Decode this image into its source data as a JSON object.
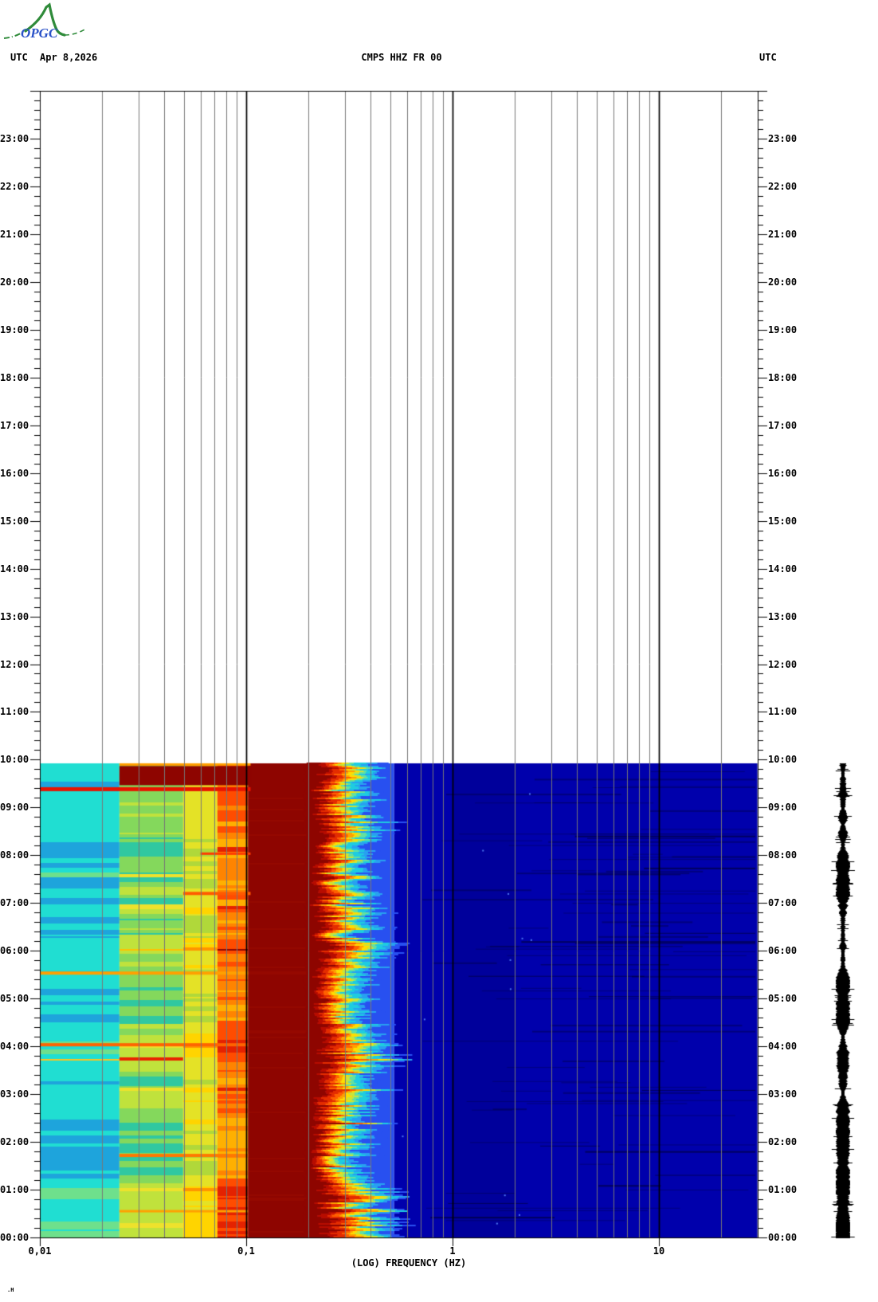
{
  "header": {
    "utc_left": "UTC",
    "date": "Apr 8,2026",
    "title": "CMPS HHZ FR 00",
    "utc_right": "UTC"
  },
  "logo": {
    "text": "OPGC",
    "mountain_color": "#2f8b3a",
    "text_color": "#2a52c8"
  },
  "x_axis": {
    "label": "(LOG) FREQUENCY (HZ)",
    "scale": "log",
    "min_hz": 0.01,
    "max_hz": 30,
    "tick_hz": [
      0.01,
      0.1,
      1,
      10
    ],
    "tick_labels": [
      "0,01",
      "0,1",
      "1",
      "10"
    ]
  },
  "time_axis": {
    "zone": "UTC",
    "hours": [
      "00:00",
      "01:00",
      "02:00",
      "03:00",
      "04:00",
      "05:00",
      "06:00",
      "07:00",
      "08:00",
      "09:00",
      "10:00",
      "11:00",
      "12:00",
      "13:00",
      "14:00",
      "15:00",
      "16:00",
      "17:00",
      "18:00",
      "19:00",
      "20:00",
      "21:00",
      "22:00",
      "23:00"
    ],
    "minor_ticks_per_hour": 5
  },
  "corner_mark": ".H",
  "chart_data": {
    "type": "heatmap",
    "subtype": "seismic-spectrogram",
    "title": "CMPS HHZ FR 00",
    "xlabel": "(LOG) FREQUENCY (HZ)",
    "x_scale": "log",
    "x_range_hz": [
      0.01,
      30
    ],
    "y_range_utc": [
      "00:00",
      "24:00"
    ],
    "grid": "vertical-log-decades",
    "data_extent": {
      "time_start": "00:00",
      "time_end": "09:55"
    },
    "colors": {
      "background": "#ffffff",
      "grid": "#777777",
      "decade_line": "#000000",
      "axis": "#000000"
    },
    "zones": [
      {
        "hz0": 0.01,
        "hz1": 0.0243,
        "type": "stripes",
        "jitter": 0.06,
        "stops": [
          [
            0.13,
            "#1ea4dc"
          ],
          [
            0.52,
            "#20ded2"
          ],
          [
            0.68,
            "#6ee08c"
          ],
          [
            0.82,
            "#cce24c"
          ],
          [
            0.92,
            "#ffc41e"
          ],
          [
            0.97,
            "#ff8200"
          ],
          [
            2,
            "#ee2600"
          ]
        ]
      },
      {
        "hz0": 0.0243,
        "hz1": 0.0495,
        "type": "stripes",
        "jitter": 0.09,
        "stops": [
          [
            0.1,
            "#30c8a0"
          ],
          [
            0.3,
            "#84d85c"
          ],
          [
            0.6,
            "#c0e23c"
          ],
          [
            0.8,
            "#eee22c"
          ],
          [
            0.9,
            "#ffc000"
          ],
          [
            0.96,
            "#ff7e00"
          ],
          [
            2,
            "#e82400"
          ]
        ]
      },
      {
        "hz0": 0.0495,
        "hz1": 0.0725,
        "type": "stripes",
        "jitter": 0.12,
        "stops": [
          [
            0.12,
            "#b0d83a"
          ],
          [
            0.4,
            "#e4e226"
          ],
          [
            0.65,
            "#ffd400"
          ],
          [
            0.84,
            "#ff9400"
          ],
          [
            0.94,
            "#ff5000"
          ],
          [
            2,
            "#d01800"
          ]
        ]
      },
      {
        "hz0": 0.0725,
        "hz1": 0.102,
        "type": "stripes",
        "jitter": 0.14,
        "stops": [
          [
            0.08,
            "#ffb000"
          ],
          [
            0.28,
            "#ff8400"
          ],
          [
            0.52,
            "#ff4c00"
          ],
          [
            0.74,
            "#e42200"
          ],
          [
            0.9,
            "#b00800"
          ],
          [
            2,
            "#8e0500"
          ]
        ]
      },
      {
        "hz0": 0.102,
        "hz1": 0.2,
        "type": "solid",
        "color": "#8e0500"
      }
    ],
    "jagged_zone": {
      "hz0": 0.2,
      "hz1": 0.52,
      "red_scaled_count": 6,
      "colors": [
        [
          "#8e0500",
          2.6
        ],
        [
          "#b80c00",
          0.8
        ],
        [
          "#e42c00",
          0.9
        ],
        [
          "#ff6000",
          0.7
        ],
        [
          "#ffa000",
          0.6
        ],
        [
          "#ffdc00",
          0.7
        ],
        [
          "#c8e43c",
          0.5
        ],
        [
          "#64e0a0",
          0.5
        ],
        [
          "#1ecce0",
          0.9
        ],
        [
          "#28a0f0",
          0.8
        ],
        [
          "#2850f0",
          0.9
        ]
      ]
    },
    "field_zone": {
      "hz0": 0.52,
      "hz1": 30,
      "base": "#0000ac",
      "streak": "rgba(0,0,70,0.45)",
      "dark_streak": "rgba(0,0,20,0.5)",
      "fleck": "rgba(90,140,255,0.85)"
    },
    "events": [
      {
        "kind": "block",
        "t0": "09:28",
        "t1": "09:52",
        "hz": [
          0.0243,
          0.105
        ],
        "color": "#8e0500"
      },
      {
        "kind": "line",
        "time": "09:54",
        "hz": [
          0.0243,
          0.105
        ],
        "color": "#ff9e00",
        "h": 3
      },
      {
        "kind": "line",
        "time": "09:23",
        "hz": [
          0.01,
          0.105
        ],
        "color": "#e81400",
        "h": 5
      },
      {
        "kind": "line",
        "time": "08:02",
        "hz": [
          0.06,
          0.105
        ],
        "color": "#ff3c00",
        "h": 3
      },
      {
        "kind": "line",
        "time": "07:12",
        "hz": [
          0.0495,
          0.105
        ],
        "color": "#ff5a00",
        "h": 4
      },
      {
        "kind": "line",
        "time": "05:32",
        "hz": [
          0.01,
          0.102
        ],
        "color": "#ffa000",
        "h": 4
      },
      {
        "kind": "line",
        "time": "04:02",
        "hz": [
          0.01,
          0.102
        ],
        "color": "#ff6400",
        "h": 4
      },
      {
        "kind": "line",
        "time": "01:43",
        "hz": [
          0.0243,
          0.102
        ],
        "color": "#ff7800",
        "h": 4
      },
      {
        "kind": "line",
        "time": "00:33",
        "hz": [
          0.0243,
          0.102
        ],
        "color": "#ffa000",
        "h": 3
      }
    ],
    "trace": {
      "color": "#000000",
      "time_start": "00:00",
      "time_end": "09:55",
      "position": "right-margin"
    }
  }
}
